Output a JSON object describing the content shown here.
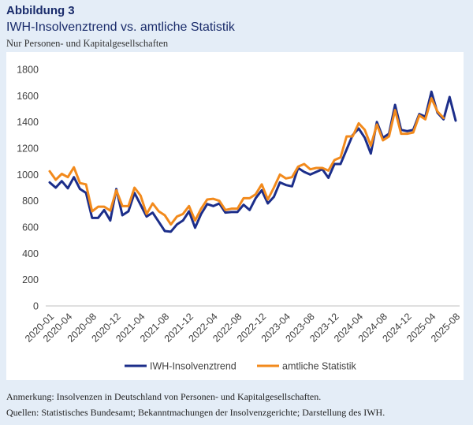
{
  "header": {
    "figure_label": "Abbildung 3",
    "title": "IWH-Insolvenztrend vs. amtliche Statistik",
    "subtitle": "Nur Personen- und Kapitalgesellschaften"
  },
  "footer": {
    "note": "Anmerkung: Insolvenzen in Deutschland von Personen- und Kapitalgesellschaften.",
    "sources": "Quellen: Statistisches Bundesamt; Bekanntmachungen der Insolvenzgerichte; Darstellung des IWH."
  },
  "colors": {
    "iwh": "#1c2e8a",
    "official": "#f28a1c",
    "axis": "#bfbfbf"
  },
  "chart_data": {
    "type": "line",
    "ylim": [
      0,
      1800
    ],
    "yticks": [
      0,
      200,
      400,
      600,
      800,
      1000,
      1200,
      1400,
      1600,
      1800
    ],
    "x_tick_labels": [
      "2020-01",
      "2020-04",
      "2020-08",
      "2020-12",
      "2021-04",
      "2021-08",
      "2021-12",
      "2022-04",
      "2022-08",
      "2022-12",
      "2023-04",
      "2023-08",
      "2023-12",
      "2024-04",
      "2024-08",
      "2024-12",
      "2025-04",
      "2025-08"
    ],
    "x_tick_indices": [
      0,
      3,
      7,
      11,
      15,
      19,
      23,
      27,
      31,
      35,
      39,
      43,
      47,
      51,
      55,
      59,
      63,
      67
    ],
    "legend_position": "bottom",
    "series": [
      {
        "name": "IWH-Insolvenztrend",
        "color": "#1c2e8a",
        "values": [
          940,
          900,
          950,
          895,
          980,
          890,
          860,
          670,
          670,
          730,
          650,
          890,
          690,
          720,
          860,
          770,
          680,
          710,
          640,
          570,
          565,
          620,
          650,
          720,
          595,
          700,
          775,
          760,
          780,
          710,
          715,
          715,
          770,
          730,
          820,
          880,
          780,
          830,
          940,
          920,
          910,
          1050,
          1020,
          1000,
          1020,
          1040,
          975,
          1080,
          1080,
          1190,
          1300,
          1350,
          1280,
          1160,
          1400,
          1280,
          1310,
          1530,
          1340,
          1330,
          1340,
          1460,
          1440,
          1630,
          1470,
          1420,
          1590,
          1410
        ]
      },
      {
        "name": "amtliche Statistik",
        "color": "#f28a1c",
        "values": [
          1025,
          960,
          1005,
          980,
          1055,
          935,
          925,
          720,
          755,
          755,
          725,
          880,
          760,
          760,
          900,
          840,
          700,
          780,
          720,
          690,
          620,
          680,
          700,
          760,
          650,
          740,
          810,
          815,
          800,
          730,
          740,
          740,
          820,
          820,
          850,
          925,
          810,
          900,
          1000,
          970,
          980,
          1060,
          1080,
          1040,
          1050,
          1050,
          1030,
          1110,
          1130,
          1290,
          1290,
          1390,
          1340,
          1220,
          1380,
          1260,
          1290,
          1490,
          1310,
          1310,
          1320,
          1450,
          1420,
          1580,
          1480,
          1430,
          null,
          null
        ]
      }
    ]
  }
}
